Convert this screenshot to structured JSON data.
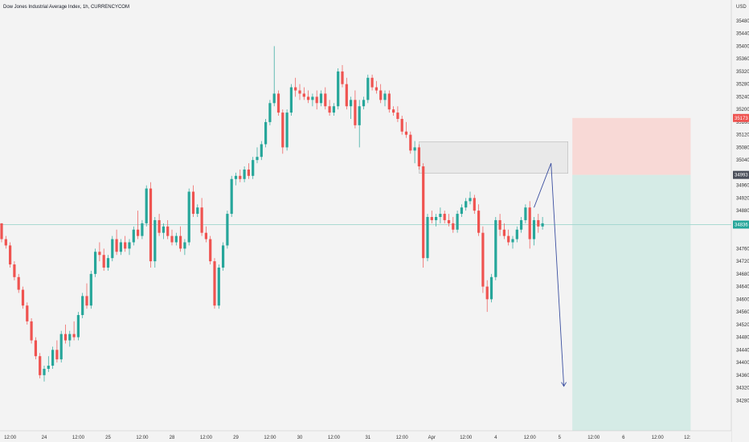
{
  "title": "Dow Jones Industrial Average Index, 1h, CURRENCYCOM",
  "currency": "USD",
  "colors": {
    "up": "#26a69a",
    "down": "#ef5350",
    "background": "#f3f3f3",
    "stop_zone": "#f8d9d6",
    "target_zone": "#d5ebe6",
    "price_line": "#9fd6ce",
    "drawing": "#3b4fa0",
    "rectangle": "#e6e6e6"
  },
  "chart_data": {
    "type": "candlestick",
    "title": "Dow Jones Industrial Average Index, 1h, CURRENCYCOM",
    "ylim": [
      34230,
      35490
    ],
    "y_ticks": [
      35480,
      35440,
      35400,
      35360,
      35320,
      35280,
      35240,
      35200,
      35160,
      35120,
      35080,
      35040,
      34960,
      34920,
      34880,
      34760,
      34720,
      34680,
      34640,
      34600,
      34560,
      34520,
      34480,
      34440,
      34400,
      34360,
      34320,
      34280
    ],
    "x_ticks": [
      "12:00",
      "24",
      "12:00",
      "25",
      "12:00",
      "28",
      "12:00",
      "29",
      "12:00",
      "30",
      "12:00",
      "31",
      "12:00",
      "Apr",
      "12:00",
      "4",
      "12:00",
      "5",
      "12:00",
      "6",
      "12:00",
      "12:"
    ],
    "x_tick_index": [
      2,
      10,
      18,
      25,
      33,
      40,
      48,
      55,
      63,
      70,
      78,
      86,
      94,
      101,
      109,
      116,
      124,
      131,
      139,
      146,
      154,
      161
    ],
    "price_tags": [
      {
        "value": 35173,
        "label": "35173",
        "color": "#ef5350"
      },
      {
        "value": 34993,
        "label": "34993",
        "color": "#4a4e59"
      },
      {
        "value": 34836,
        "label": "34836",
        "color": "#26a69a"
      }
    ],
    "last_price": 34836,
    "position": {
      "start_index": 134,
      "end_index": 158,
      "entry": 34993,
      "stop": 35173,
      "bottom": 34230
    },
    "zone": {
      "start_index": 98,
      "end_index": 132,
      "top": 35098,
      "bottom": 34998
    },
    "projection": [
      [
        125,
        34890
      ],
      [
        129,
        35030
      ],
      [
        132,
        34325
      ]
    ],
    "candles": [
      [
        34840,
        34840,
        34780,
        34790
      ],
      [
        34790,
        34800,
        34760,
        34770
      ],
      [
        34770,
        34780,
        34700,
        34710
      ],
      [
        34710,
        34720,
        34660,
        34670
      ],
      [
        34670,
        34680,
        34620,
        34630
      ],
      [
        34630,
        34640,
        34570,
        34580
      ],
      [
        34580,
        34590,
        34520,
        34530
      ],
      [
        34530,
        34540,
        34460,
        34470
      ],
      [
        34470,
        34480,
        34410,
        34420
      ],
      [
        34420,
        34430,
        34350,
        34360
      ],
      [
        34360,
        34390,
        34340,
        34380
      ],
      [
        34380,
        34420,
        34370,
        34390
      ],
      [
        34390,
        34450,
        34380,
        34440
      ],
      [
        34440,
        34470,
        34400,
        34410
      ],
      [
        34410,
        34500,
        34400,
        34490
      ],
      [
        34490,
        34520,
        34460,
        34470
      ],
      [
        34470,
        34500,
        34450,
        34490
      ],
      [
        34490,
        34530,
        34470,
        34480
      ],
      [
        34480,
        34560,
        34470,
        34550
      ],
      [
        34550,
        34620,
        34540,
        34610
      ],
      [
        34610,
        34650,
        34570,
        34580
      ],
      [
        34580,
        34690,
        34570,
        34680
      ],
      [
        34680,
        34760,
        34670,
        34750
      ],
      [
        34750,
        34780,
        34720,
        34740
      ],
      [
        34740,
        34760,
        34690,
        34700
      ],
      [
        34700,
        34740,
        34690,
        34730
      ],
      [
        34730,
        34800,
        34720,
        34790
      ],
      [
        34790,
        34820,
        34740,
        34750
      ],
      [
        34750,
        34790,
        34740,
        34780
      ],
      [
        34780,
        34800,
        34750,
        34760
      ],
      [
        34760,
        34790,
        34740,
        34780
      ],
      [
        34780,
        34830,
        34770,
        34820
      ],
      [
        34820,
        34880,
        34790,
        34800
      ],
      [
        34800,
        34850,
        34790,
        34840
      ],
      [
        34840,
        34960,
        34830,
        34950
      ],
      [
        34950,
        34970,
        34700,
        34720
      ],
      [
        34720,
        34860,
        34700,
        34850
      ],
      [
        34850,
        34870,
        34800,
        34810
      ],
      [
        34810,
        34840,
        34790,
        34830
      ],
      [
        34830,
        34850,
        34790,
        34800
      ],
      [
        34800,
        34820,
        34770,
        34780
      ],
      [
        34780,
        34810,
        34770,
        34800
      ],
      [
        34800,
        34830,
        34750,
        34760
      ],
      [
        34760,
        34790,
        34740,
        34780
      ],
      [
        34780,
        34950,
        34770,
        34940
      ],
      [
        34940,
        34960,
        34860,
        34870
      ],
      [
        34870,
        34900,
        34860,
        34890
      ],
      [
        34890,
        34920,
        34800,
        34810
      ],
      [
        34810,
        34830,
        34780,
        34790
      ],
      [
        34790,
        34800,
        34710,
        34720
      ],
      [
        34720,
        34730,
        34570,
        34580
      ],
      [
        34580,
        34710,
        34570,
        34700
      ],
      [
        34700,
        34780,
        34690,
        34770
      ],
      [
        34770,
        34880,
        34760,
        34870
      ],
      [
        34870,
        34990,
        34860,
        34980
      ],
      [
        34980,
        35000,
        34960,
        34990
      ],
      [
        34990,
        35010,
        34970,
        34980
      ],
      [
        34980,
        35020,
        34970,
        35010
      ],
      [
        35010,
        35030,
        34980,
        34990
      ],
      [
        34990,
        35050,
        34980,
        35040
      ],
      [
        35040,
        35080,
        35030,
        35050
      ],
      [
        35050,
        35100,
        35040,
        35090
      ],
      [
        35090,
        35170,
        35080,
        35160
      ],
      [
        35160,
        35230,
        35150,
        35220
      ],
      [
        35220,
        35400,
        35210,
        35250
      ],
      [
        35250,
        35260,
        35180,
        35190
      ],
      [
        35190,
        35200,
        35060,
        35080
      ],
      [
        35080,
        35200,
        35070,
        35190
      ],
      [
        35190,
        35280,
        35180,
        35270
      ],
      [
        35270,
        35300,
        35240,
        35260
      ],
      [
        35260,
        35280,
        35230,
        35250
      ],
      [
        35250,
        35270,
        35230,
        35240
      ],
      [
        35240,
        35260,
        35220,
        35230
      ],
      [
        35230,
        35250,
        35210,
        35240
      ],
      [
        35240,
        35260,
        35200,
        35220
      ],
      [
        35220,
        35260,
        35210,
        35250
      ],
      [
        35250,
        35270,
        35200,
        35210
      ],
      [
        35210,
        35230,
        35180,
        35190
      ],
      [
        35190,
        35220,
        35180,
        35210
      ],
      [
        35210,
        35330,
        35200,
        35320
      ],
      [
        35320,
        35340,
        35270,
        35280
      ],
      [
        35280,
        35300,
        35200,
        35210
      ],
      [
        35210,
        35240,
        35170,
        35230
      ],
      [
        35230,
        35260,
        35140,
        35150
      ],
      [
        35150,
        35230,
        35080,
        35210
      ],
      [
        35210,
        35240,
        35200,
        35230
      ],
      [
        35230,
        35310,
        35220,
        35300
      ],
      [
        35300,
        35310,
        35260,
        35270
      ],
      [
        35270,
        35290,
        35250,
        35260
      ],
      [
        35260,
        35280,
        35220,
        35230
      ],
      [
        35230,
        35260,
        35210,
        35250
      ],
      [
        35250,
        35260,
        35190,
        35200
      ],
      [
        35200,
        35210,
        35180,
        35190
      ],
      [
        35190,
        35210,
        35160,
        35170
      ],
      [
        35170,
        35180,
        35120,
        35130
      ],
      [
        35130,
        35160,
        35110,
        35120
      ],
      [
        35120,
        35130,
        35060,
        35070
      ],
      [
        35070,
        35100,
        35030,
        35080
      ],
      [
        35080,
        35090,
        35010,
        35020
      ],
      [
        35020,
        35030,
        34700,
        34730
      ],
      [
        34730,
        34870,
        34720,
        34860
      ],
      [
        34860,
        34880,
        34840,
        34850
      ],
      [
        34850,
        34870,
        34830,
        34860
      ],
      [
        34860,
        34890,
        34840,
        34870
      ],
      [
        34870,
        34880,
        34840,
        34850
      ],
      [
        34850,
        34870,
        34830,
        34840
      ],
      [
        34840,
        34860,
        34810,
        34820
      ],
      [
        34820,
        34880,
        34810,
        34870
      ],
      [
        34870,
        34900,
        34860,
        34890
      ],
      [
        34890,
        34920,
        34880,
        34910
      ],
      [
        34910,
        34940,
        34900,
        34920
      ],
      [
        34920,
        34930,
        34870,
        34880
      ],
      [
        34880,
        34900,
        34800,
        34810
      ],
      [
        34810,
        34830,
        34620,
        34640
      ],
      [
        34640,
        34660,
        34560,
        34600
      ],
      [
        34600,
        34680,
        34590,
        34670
      ],
      [
        34670,
        34860,
        34660,
        34850
      ],
      [
        34850,
        34870,
        34800,
        34820
      ],
      [
        34820,
        34840,
        34790,
        34800
      ],
      [
        34800,
        34820,
        34770,
        34780
      ],
      [
        34780,
        34800,
        34760,
        34790
      ],
      [
        34790,
        34830,
        34780,
        34820
      ],
      [
        34820,
        34860,
        34810,
        34850
      ],
      [
        34850,
        34900,
        34840,
        34890
      ],
      [
        34890,
        34910,
        34760,
        34790
      ],
      [
        34790,
        34860,
        34770,
        34850
      ],
      [
        34850,
        34870,
        34810,
        34830
      ],
      [
        34830,
        34860,
        34820,
        34840
      ]
    ]
  }
}
